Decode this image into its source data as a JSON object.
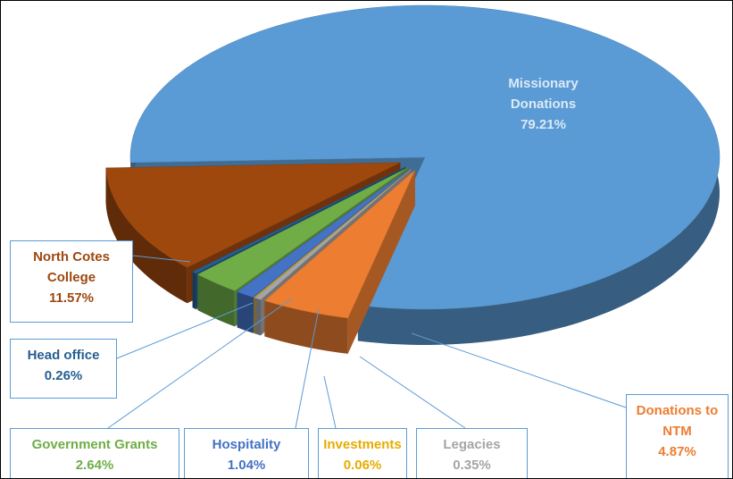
{
  "chart_data": {
    "type": "pie",
    "categories": [
      "Missionary Donations",
      "Donations to NTM",
      "Legacies",
      "Investments",
      "Hospitality",
      "Government Grants",
      "Head office",
      "North Cotes College"
    ],
    "values": [
      79.21,
      4.87,
      0.35,
      0.06,
      1.04,
      2.64,
      0.26,
      11.57
    ],
    "value_labels": [
      "79.21%",
      "4.87%",
      "0.35%",
      "0.06%",
      "1.04%",
      "2.64%",
      "0.26%",
      "11.57%"
    ],
    "colors": [
      "#5b9bd5",
      "#ed7d31",
      "#a5a5a5",
      "#e6ac00",
      "#4472c4",
      "#70ad47",
      "#255e91",
      "#9e480e"
    ]
  }
}
